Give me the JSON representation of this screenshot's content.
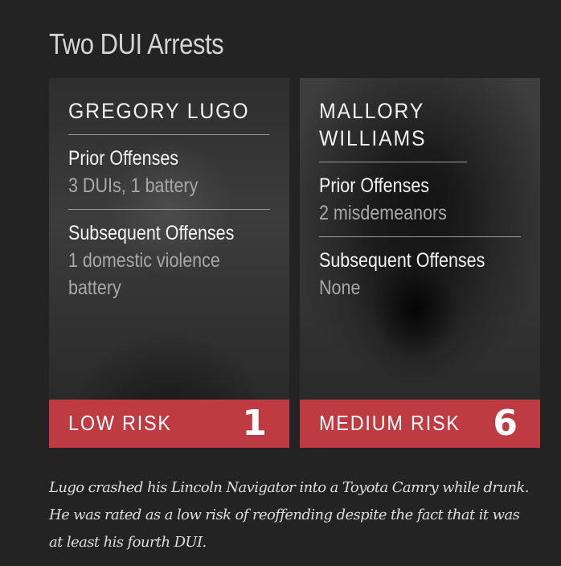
{
  "title": "Two DUI Arrests",
  "cards": [
    {
      "name": "GREGORY LUGO",
      "prior_label": "Prior Offenses",
      "prior_value": "3 DUIs, 1 battery",
      "subsequent_label": "Subsequent Offenses",
      "subsequent_value": "1 domestic violence battery",
      "risk_label": "LOW RISK",
      "risk_score": "1"
    },
    {
      "name": "MALLORY WILLIAMS",
      "prior_label": "Prior Offenses",
      "prior_value": "2 misdemeanors",
      "subsequent_label": "Subsequent Offenses",
      "subsequent_value": "None",
      "risk_label": "MEDIUM RISK",
      "risk_score": "6"
    }
  ],
  "caption": "Lugo crashed his Lincoln Navigator into a Toyota Camry while drunk. He was rated as a low risk of reoffending despite the fact that it was at least his fourth DUI.",
  "colors": {
    "background": "#232323",
    "risk_bar": "#be3b42",
    "divider": "#9a9a9a"
  }
}
